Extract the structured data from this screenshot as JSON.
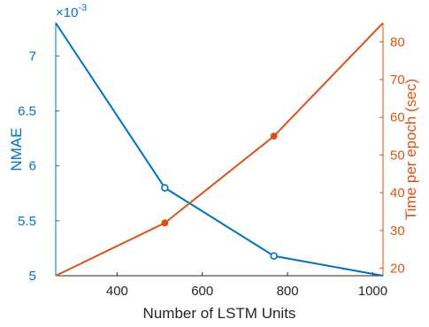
{
  "chart_data": {
    "type": "line",
    "xlabel": "Number of LSTM Units",
    "y_left_label": "NMAE",
    "y_right_label": "Time per epoch (sec)",
    "y_left_multiplier_text": "×10",
    "y_left_multiplier_exp": "-3",
    "xlim": [
      256,
      1024
    ],
    "y_left_lim": [
      0.005,
      0.0073
    ],
    "y_right_lim": [
      18,
      85
    ],
    "x_ticks": [
      400,
      600,
      800,
      1000
    ],
    "x_tick_labels": [
      "400",
      "600",
      "800",
      "1000"
    ],
    "y_left_ticks": [
      0.005,
      0.0055,
      0.006,
      0.0065,
      0.007
    ],
    "y_left_tick_labels": [
      "5",
      "5.5",
      "6",
      "6.5",
      "7"
    ],
    "y_right_ticks": [
      20,
      30,
      40,
      50,
      60,
      70,
      80
    ],
    "y_right_tick_labels": [
      "20",
      "30",
      "40",
      "50",
      "60",
      "70",
      "80"
    ],
    "series": [
      {
        "axis": "left",
        "color": "#0072BD",
        "marker": "open-circle",
        "x": [
          256,
          512,
          768,
          1024
        ],
        "y": [
          0.0073,
          0.0058,
          0.00518,
          0.005
        ]
      },
      {
        "axis": "right",
        "color": "#D95319",
        "marker": "filled-dot",
        "x": [
          256,
          512,
          768,
          1024
        ],
        "y": [
          18,
          32,
          55,
          85
        ]
      }
    ],
    "grid": false
  },
  "colors": {
    "left_axis": "#0072BD",
    "right_axis": "#D95319",
    "bottom_axis": "#262626"
  }
}
